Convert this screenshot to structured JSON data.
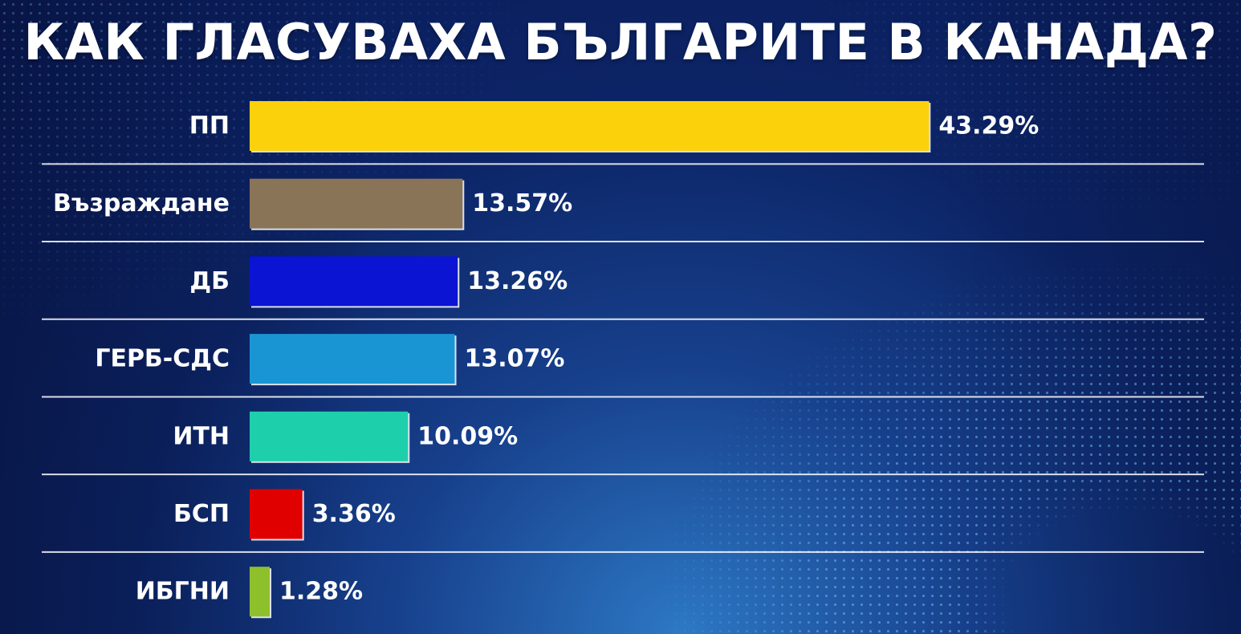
{
  "chart_data": {
    "type": "bar",
    "orientation": "horizontal",
    "title": "КАК ГЛАСУВАХА БЪЛГАРИТЕ В КАНАДА?",
    "categories": [
      "ПП",
      "Възраждане",
      "ДБ",
      "ГЕРБ-СДС",
      "ИТН",
      "БСП",
      "ИБГНИ"
    ],
    "values": [
      43.29,
      13.57,
      13.26,
      13.07,
      10.09,
      3.36,
      1.28
    ],
    "value_labels": [
      "43.29%",
      "13.57%",
      "13.26%",
      "13.07%",
      "10.09%",
      "3.36%",
      "1.28%"
    ],
    "colors": [
      "#fbd10b",
      "#8a7458",
      "#0a14d2",
      "#1a95d4",
      "#1ecfac",
      "#e00000",
      "#8ec02c"
    ],
    "unit": "%",
    "grid": false,
    "legend": "none"
  }
}
